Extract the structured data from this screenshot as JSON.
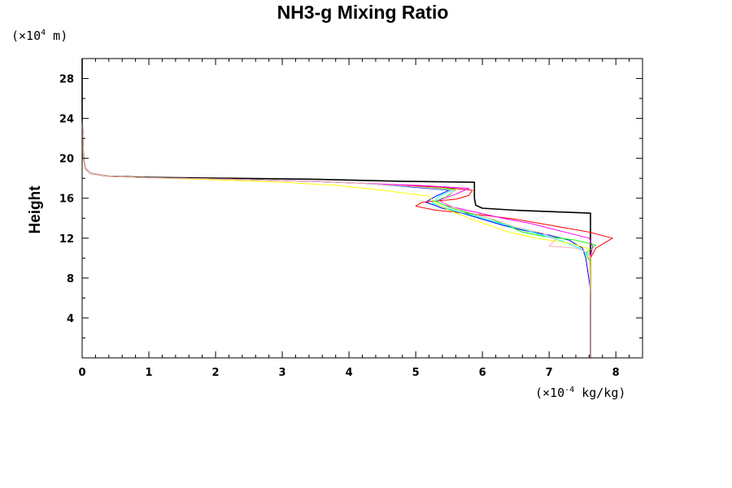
{
  "chart_data": {
    "type": "line",
    "title": "NH3-g Mixing Ratio",
    "ylabel": "Height",
    "xunit": {
      "prefix": "(×10",
      "exp": "-4",
      "suffix": " kg/kg)"
    },
    "yunit": {
      "prefix": "(×10",
      "exp": "4",
      "suffix": " m)"
    },
    "xlim": [
      0,
      8.4
    ],
    "ylim": [
      0,
      30
    ],
    "x_ticks": [
      0,
      1,
      2,
      3,
      4,
      5,
      6,
      7,
      8
    ],
    "y_ticks": [
      4,
      8,
      12,
      16,
      20,
      24,
      28
    ],
    "x_minor_step": 0.2,
    "y_minor_step": 2,
    "grid": false,
    "series": [
      {
        "color": "#000000",
        "points": [
          [
            7.62,
            0
          ],
          [
            7.62,
            6
          ],
          [
            7.62,
            10
          ],
          [
            7.62,
            14.2
          ],
          [
            7.62,
            14.5
          ],
          [
            6.5,
            14.8
          ],
          [
            6.0,
            15.0
          ],
          [
            5.9,
            15.3
          ],
          [
            5.88,
            16.0
          ],
          [
            5.88,
            17.6
          ],
          [
            4.8,
            17.7
          ],
          [
            3.5,
            17.9
          ],
          [
            2.2,
            18.0
          ],
          [
            1.0,
            18.1
          ],
          [
            0.4,
            18.2
          ],
          [
            0.12,
            18.5
          ],
          [
            0.05,
            19.0
          ],
          [
            0.02,
            20
          ],
          [
            0,
            24
          ],
          [
            0,
            30
          ]
        ]
      },
      {
        "color": "#0000ff",
        "points": [
          [
            7.62,
            0
          ],
          [
            7.62,
            6.8
          ],
          [
            7.55,
            10
          ],
          [
            7.5,
            11.0
          ],
          [
            7.3,
            11.8
          ],
          [
            7.0,
            12.3
          ],
          [
            6.6,
            12.8
          ],
          [
            6.3,
            13.3
          ],
          [
            6.0,
            13.9
          ],
          [
            5.7,
            14.5
          ],
          [
            5.4,
            15.0
          ],
          [
            5.15,
            15.6
          ],
          [
            5.3,
            16.2
          ],
          [
            5.5,
            16.8
          ],
          [
            4.8,
            17.2
          ],
          [
            4.2,
            17.5
          ],
          [
            3.4,
            17.7
          ],
          [
            2.2,
            17.9
          ],
          [
            1.0,
            18.05
          ],
          [
            0.4,
            18.2
          ],
          [
            0.12,
            18.5
          ],
          [
            0.05,
            19.0
          ],
          [
            0.02,
            20
          ],
          [
            0,
            24
          ],
          [
            0,
            30
          ]
        ]
      },
      {
        "color": "#ff0000",
        "points": [
          [
            7.62,
            0
          ],
          [
            7.62,
            6
          ],
          [
            7.62,
            10
          ],
          [
            7.7,
            11.0
          ],
          [
            7.95,
            12.0
          ],
          [
            7.6,
            12.6
          ],
          [
            7.1,
            13.2
          ],
          [
            6.5,
            13.9
          ],
          [
            5.9,
            14.4
          ],
          [
            5.3,
            14.8
          ],
          [
            5.0,
            15.2
          ],
          [
            5.1,
            15.6
          ],
          [
            5.6,
            15.9
          ],
          [
            5.8,
            16.3
          ],
          [
            5.85,
            16.8
          ],
          [
            5.4,
            17.1
          ],
          [
            4.8,
            17.3
          ],
          [
            4.2,
            17.5
          ],
          [
            3.4,
            17.7
          ],
          [
            2.2,
            17.9
          ],
          [
            1.0,
            18.05
          ],
          [
            0.4,
            18.2
          ],
          [
            0.12,
            18.5
          ],
          [
            0.05,
            19.0
          ],
          [
            0.02,
            20
          ],
          [
            0,
            24
          ],
          [
            0,
            30
          ]
        ]
      },
      {
        "color": "#00ff00",
        "points": [
          [
            7.62,
            0
          ],
          [
            7.62,
            6
          ],
          [
            7.62,
            9.5
          ],
          [
            7.55,
            10.5
          ],
          [
            7.7,
            11.3
          ],
          [
            7.4,
            11.8
          ],
          [
            6.9,
            12.2
          ],
          [
            6.6,
            12.6
          ],
          [
            6.4,
            13.2
          ],
          [
            6.1,
            14.0
          ],
          [
            5.8,
            14.5
          ],
          [
            5.5,
            15.1
          ],
          [
            5.3,
            15.7
          ],
          [
            5.5,
            16.3
          ],
          [
            5.6,
            16.9
          ],
          [
            4.9,
            17.2
          ],
          [
            4.2,
            17.5
          ],
          [
            3.4,
            17.7
          ],
          [
            2.2,
            17.9
          ],
          [
            1.0,
            18.05
          ],
          [
            0.4,
            18.2
          ],
          [
            0.12,
            18.5
          ],
          [
            0.05,
            19.0
          ],
          [
            0.02,
            20
          ],
          [
            0,
            24
          ],
          [
            0,
            30
          ]
        ]
      },
      {
        "color": "#00ffff",
        "points": [
          [
            7.62,
            0
          ],
          [
            7.62,
            6
          ],
          [
            7.62,
            10.2
          ],
          [
            7.45,
            11.0
          ],
          [
            7.2,
            11.7
          ],
          [
            6.9,
            12.3
          ],
          [
            6.6,
            12.9
          ],
          [
            6.2,
            13.6
          ],
          [
            5.9,
            14.2
          ],
          [
            5.55,
            14.8
          ],
          [
            5.25,
            15.5
          ],
          [
            5.35,
            16.2
          ],
          [
            5.55,
            16.8
          ],
          [
            4.9,
            17.2
          ],
          [
            4.2,
            17.5
          ],
          [
            3.4,
            17.7
          ],
          [
            2.2,
            17.9
          ],
          [
            1.0,
            18.05
          ],
          [
            0.4,
            18.2
          ],
          [
            0.12,
            18.5
          ],
          [
            0.05,
            19.0
          ],
          [
            0.02,
            20
          ],
          [
            0,
            24
          ],
          [
            0,
            30
          ]
        ]
      },
      {
        "color": "#ff00ff",
        "points": [
          [
            7.62,
            0
          ],
          [
            7.62,
            6
          ],
          [
            7.62,
            10
          ],
          [
            7.65,
            11.2
          ],
          [
            7.6,
            12.0
          ],
          [
            7.3,
            12.5
          ],
          [
            7.0,
            13.0
          ],
          [
            6.7,
            13.5
          ],
          [
            6.3,
            14.0
          ],
          [
            5.9,
            14.6
          ],
          [
            5.5,
            15.2
          ],
          [
            5.35,
            15.8
          ],
          [
            5.6,
            16.4
          ],
          [
            5.8,
            17.0
          ],
          [
            5.0,
            17.3
          ],
          [
            4.2,
            17.5
          ],
          [
            3.4,
            17.7
          ],
          [
            2.2,
            17.9
          ],
          [
            1.0,
            18.05
          ],
          [
            0.4,
            18.2
          ],
          [
            0.12,
            18.5
          ],
          [
            0.05,
            19.0
          ],
          [
            0.02,
            20
          ],
          [
            0,
            24
          ],
          [
            0,
            30
          ]
        ]
      },
      {
        "color": "#ffff00",
        "points": [
          [
            7.62,
            0
          ],
          [
            7.62,
            6
          ],
          [
            7.62,
            10
          ],
          [
            7.58,
            11.0
          ],
          [
            7.3,
            11.5
          ],
          [
            6.8,
            12.0
          ],
          [
            6.4,
            12.6
          ],
          [
            6.1,
            13.3
          ],
          [
            5.8,
            14.0
          ],
          [
            5.5,
            14.8
          ],
          [
            5.3,
            15.5
          ],
          [
            5.2,
            16.2
          ],
          [
            4.5,
            16.8
          ],
          [
            3.8,
            17.3
          ],
          [
            3.0,
            17.6
          ],
          [
            2.0,
            17.85
          ],
          [
            1.0,
            18.05
          ],
          [
            0.4,
            18.2
          ],
          [
            0.12,
            18.5
          ],
          [
            0.05,
            19.0
          ],
          [
            0.02,
            20
          ],
          [
            0,
            24
          ],
          [
            0,
            30
          ]
        ]
      },
      {
        "color": "#ffb0b0",
        "points": [
          [
            7.62,
            0
          ],
          [
            7.62,
            6
          ],
          [
            7.6,
            10.5
          ],
          [
            7.4,
            11.0
          ],
          [
            7.0,
            11.2
          ],
          [
            7.1,
            11.9
          ],
          [
            6.9,
            12.5
          ],
          [
            6.5,
            13.1
          ],
          [
            6.2,
            13.8
          ],
          [
            5.9,
            14.4
          ],
          [
            5.6,
            15.0
          ],
          [
            5.4,
            15.6
          ],
          [
            5.45,
            16.2
          ],
          [
            5.6,
            16.8
          ],
          [
            4.9,
            17.2
          ],
          [
            4.2,
            17.5
          ],
          [
            3.4,
            17.7
          ],
          [
            2.2,
            17.9
          ],
          [
            1.0,
            18.05
          ],
          [
            0.4,
            18.2
          ],
          [
            0.12,
            18.5
          ],
          [
            0.05,
            19.0
          ],
          [
            0.02,
            20
          ],
          [
            0,
            24
          ],
          [
            0,
            30
          ]
        ]
      }
    ]
  }
}
